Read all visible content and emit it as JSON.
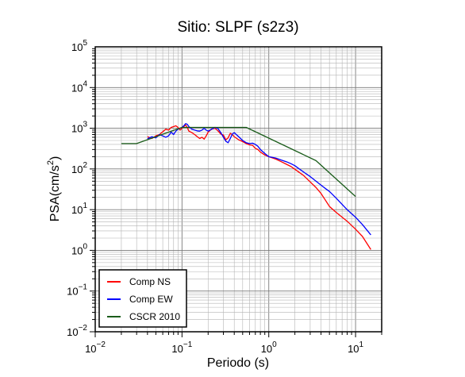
{
  "chart_data": {
    "type": "line",
    "title": "Sitio: SLPF (s2z3)",
    "xlabel": "Periodo (s)",
    "ylabel_base": "PSA(cm/s",
    "ylabel_sup": "2",
    "ylabel_end": ")",
    "x_scale": "log",
    "y_scale": "log",
    "xlim": [
      0.01,
      20
    ],
    "ylim": [
      0.01,
      100000
    ],
    "grid": true,
    "legend_position": "bottom-left",
    "x_ticks": [
      {
        "value": 0.01,
        "base": "10",
        "exp": "−2"
      },
      {
        "value": 0.1,
        "base": "10",
        "exp": "−1"
      },
      {
        "value": 1,
        "base": "10",
        "exp": "0"
      },
      {
        "value": 10,
        "base": "10",
        "exp": "1"
      }
    ],
    "y_ticks": [
      {
        "value": 0.01,
        "base": "10",
        "exp": "−2"
      },
      {
        "value": 0.1,
        "base": "10",
        "exp": "−1"
      },
      {
        "value": 1,
        "base": "10",
        "exp": "0"
      },
      {
        "value": 10,
        "base": "10",
        "exp": "1"
      },
      {
        "value": 100,
        "base": "10",
        "exp": "2"
      },
      {
        "value": 1000,
        "base": "10",
        "exp": "3"
      },
      {
        "value": 10000,
        "base": "10",
        "exp": "4"
      },
      {
        "value": 100000,
        "base": "10",
        "exp": "5"
      }
    ],
    "series": [
      {
        "name": "Comp NS",
        "color": "#ff0000",
        "points": [
          [
            0.04,
            620
          ],
          [
            0.045,
            560
          ],
          [
            0.05,
            650
          ],
          [
            0.055,
            700
          ],
          [
            0.06,
            820
          ],
          [
            0.065,
            950
          ],
          [
            0.07,
            900
          ],
          [
            0.075,
            1050
          ],
          [
            0.08,
            1100
          ],
          [
            0.085,
            1150
          ],
          [
            0.09,
            1050
          ],
          [
            0.095,
            900
          ],
          [
            0.1,
            1000
          ],
          [
            0.105,
            1100
          ],
          [
            0.11,
            1200
          ],
          [
            0.115,
            1050
          ],
          [
            0.12,
            850
          ],
          [
            0.13,
            780
          ],
          [
            0.14,
            700
          ],
          [
            0.15,
            620
          ],
          [
            0.16,
            560
          ],
          [
            0.17,
            600
          ],
          [
            0.18,
            540
          ],
          [
            0.19,
            650
          ],
          [
            0.2,
            800
          ],
          [
            0.22,
            960
          ],
          [
            0.24,
            1000
          ],
          [
            0.26,
            860
          ],
          [
            0.28,
            720
          ],
          [
            0.3,
            680
          ],
          [
            0.32,
            520
          ],
          [
            0.34,
            580
          ],
          [
            0.36,
            750
          ],
          [
            0.38,
            700
          ],
          [
            0.4,
            620
          ],
          [
            0.45,
            520
          ],
          [
            0.5,
            470
          ],
          [
            0.55,
            420
          ],
          [
            0.6,
            390
          ],
          [
            0.65,
            380
          ],
          [
            0.7,
            320
          ],
          [
            0.75,
            300
          ],
          [
            0.8,
            260
          ],
          [
            0.9,
            220
          ],
          [
            1.0,
            200
          ],
          [
            1.2,
            175
          ],
          [
            1.4,
            150
          ],
          [
            1.6,
            130
          ],
          [
            1.8,
            115
          ],
          [
            2.0,
            98
          ],
          [
            2.5,
            70
          ],
          [
            3.0,
            48
          ],
          [
            3.5,
            35
          ],
          [
            4.0,
            25
          ],
          [
            4.5,
            17
          ],
          [
            5.0,
            12
          ],
          [
            6.0,
            8.5
          ],
          [
            8.0,
            5.2
          ],
          [
            10.0,
            3.3
          ],
          [
            12.0,
            2.2
          ],
          [
            15.0,
            1.05
          ]
        ]
      },
      {
        "name": "Comp EW",
        "color": "#0000ff",
        "points": [
          [
            0.04,
            550
          ],
          [
            0.045,
            620
          ],
          [
            0.05,
            580
          ],
          [
            0.055,
            700
          ],
          [
            0.06,
            650
          ],
          [
            0.065,
            600
          ],
          [
            0.07,
            650
          ],
          [
            0.075,
            800
          ],
          [
            0.08,
            700
          ],
          [
            0.085,
            850
          ],
          [
            0.09,
            950
          ],
          [
            0.095,
            1000
          ],
          [
            0.1,
            1050
          ],
          [
            0.105,
            1150
          ],
          [
            0.11,
            1300
          ],
          [
            0.115,
            1250
          ],
          [
            0.12,
            1100
          ],
          [
            0.13,
            950
          ],
          [
            0.14,
            900
          ],
          [
            0.15,
            860
          ],
          [
            0.16,
            850
          ],
          [
            0.17,
            900
          ],
          [
            0.18,
            1000
          ],
          [
            0.19,
            900
          ],
          [
            0.2,
            850
          ],
          [
            0.22,
            950
          ],
          [
            0.24,
            1050
          ],
          [
            0.26,
            980
          ],
          [
            0.28,
            780
          ],
          [
            0.3,
            600
          ],
          [
            0.32,
            480
          ],
          [
            0.34,
            440
          ],
          [
            0.36,
            560
          ],
          [
            0.38,
            720
          ],
          [
            0.4,
            780
          ],
          [
            0.45,
            620
          ],
          [
            0.5,
            500
          ],
          [
            0.55,
            440
          ],
          [
            0.6,
            420
          ],
          [
            0.65,
            430
          ],
          [
            0.7,
            400
          ],
          [
            0.75,
            360
          ],
          [
            0.8,
            300
          ],
          [
            0.9,
            240
          ],
          [
            1.0,
            200
          ],
          [
            1.2,
            185
          ],
          [
            1.4,
            165
          ],
          [
            1.6,
            150
          ],
          [
            1.8,
            135
          ],
          [
            2.0,
            120
          ],
          [
            2.5,
            85
          ],
          [
            3.0,
            65
          ],
          [
            3.5,
            50
          ],
          [
            4.0,
            40
          ],
          [
            4.5,
            33
          ],
          [
            5.0,
            28
          ],
          [
            6.0,
            19
          ],
          [
            8.0,
            10
          ],
          [
            10.0,
            6.5
          ],
          [
            12.0,
            4.3
          ],
          [
            15.0,
            2.4
          ]
        ]
      },
      {
        "name": "CSCR 2010",
        "color": "#1a5c1a",
        "points": [
          [
            0.02,
            420
          ],
          [
            0.03,
            420
          ],
          [
            0.1,
            1050
          ],
          [
            0.55,
            1050
          ],
          [
            3.5,
            160
          ],
          [
            10.0,
            21
          ]
        ]
      }
    ]
  }
}
